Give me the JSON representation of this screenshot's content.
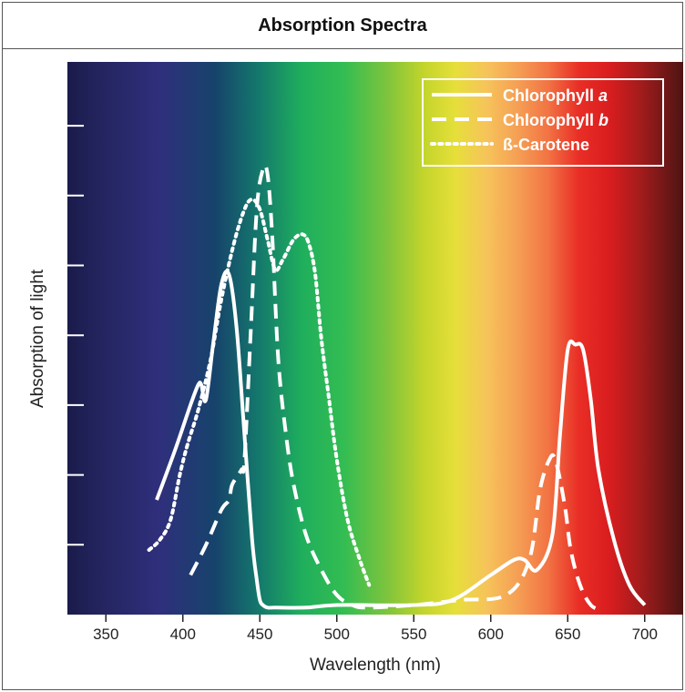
{
  "chart_data": {
    "type": "line",
    "title": "Absorption Spectra",
    "xlabel": "Wavelength (nm)",
    "ylabel": "Absorption of light",
    "xlim": [
      325,
      725
    ],
    "ylim": [
      0,
      1
    ],
    "x_ticks": [
      350,
      400,
      450,
      500,
      550,
      600,
      650,
      700
    ],
    "x_tick_labels": [
      "350",
      "400",
      "450",
      "500",
      "550",
      "600",
      "650",
      "700"
    ],
    "y_ticks_count": 7,
    "y_tick_labels_shown": false,
    "grid": false,
    "background": "visible light spectrum gradient",
    "legend_position": "top-right",
    "series": [
      {
        "name": "Chlorophyll a",
        "name_main": "Chlorophyll ",
        "name_italic": "a",
        "style": "solid",
        "color": "#ffffff",
        "x": [
          383,
          395,
          405,
          410,
          412,
          415,
          420,
          425,
          430,
          435,
          440,
          445,
          448,
          450,
          452,
          455,
          460,
          480,
          500,
          550,
          575,
          600,
          615,
          622,
          630,
          640,
          645,
          650,
          655,
          660,
          665,
          670,
          680,
          690,
          700
        ],
        "y": [
          0.22,
          0.32,
          0.41,
          0.45,
          0.45,
          0.42,
          0.54,
          0.65,
          0.67,
          0.56,
          0.35,
          0.14,
          0.06,
          0.02,
          0.01,
          0.005,
          0.005,
          0.005,
          0.01,
          0.01,
          0.02,
          0.07,
          0.1,
          0.1,
          0.08,
          0.15,
          0.35,
          0.52,
          0.53,
          0.52,
          0.42,
          0.28,
          0.14,
          0.05,
          0.01
        ]
      },
      {
        "name": "Chlorophyll b",
        "name_main": "Chlorophyll ",
        "name_italic": "b",
        "style": "dashed",
        "color": "#ffffff",
        "x": [
          405,
          415,
          425,
          430,
          432,
          438,
          440,
          444,
          448,
          452,
          455,
          458,
          462,
          467,
          472,
          480,
          490,
          500,
          510,
          520,
          550,
          580,
          610,
          625,
          632,
          638,
          642,
          648,
          652,
          658,
          665,
          672
        ],
        "y": [
          0.07,
          0.13,
          0.2,
          0.22,
          0.25,
          0.28,
          0.3,
          0.55,
          0.8,
          0.88,
          0.87,
          0.75,
          0.5,
          0.35,
          0.25,
          0.15,
          0.08,
          0.03,
          0.01,
          0.005,
          0.01,
          0.02,
          0.03,
          0.1,
          0.24,
          0.3,
          0.3,
          0.21,
          0.12,
          0.05,
          0.01,
          0.0
        ]
      },
      {
        "name": "ß-Carotene",
        "style": "dotted",
        "color": "#ffffff",
        "x": [
          378,
          385,
          392,
          398,
          403,
          410,
          418,
          425,
          433,
          440,
          445,
          450,
          455,
          460,
          465,
          472,
          478,
          482,
          486,
          490,
          495,
          500,
          507,
          515,
          521
        ],
        "y": [
          0.12,
          0.14,
          0.18,
          0.27,
          0.33,
          0.4,
          0.5,
          0.62,
          0.73,
          0.8,
          0.82,
          0.8,
          0.74,
          0.68,
          0.7,
          0.74,
          0.75,
          0.73,
          0.67,
          0.54,
          0.42,
          0.3,
          0.18,
          0.1,
          0.05
        ]
      }
    ]
  }
}
